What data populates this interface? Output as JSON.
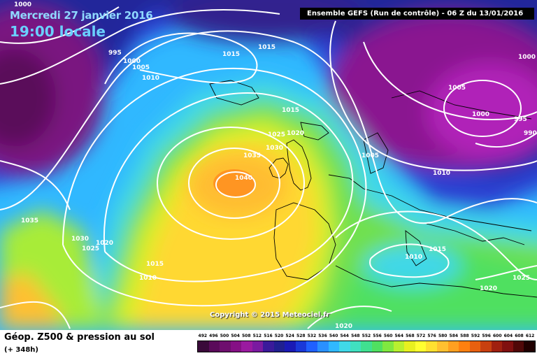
{
  "header": {
    "date": "Mercredi 27 janvier 2016",
    "time": "19:00 locale",
    "run": "Ensemble GEFS  (Run de contrôle)  -  06 Z du 13/01/2016"
  },
  "copyright": "Copyright © 2015 Meteociel.fr",
  "footer": {
    "title": "Géop. Z500 & pression au sol",
    "subtitle": "(+ 348h)"
  },
  "legend": {
    "values": [
      "492",
      "496",
      "500",
      "504",
      "508",
      "512",
      "516",
      "520",
      "524",
      "528",
      "532",
      "536",
      "540",
      "544",
      "548",
      "552",
      "556",
      "560",
      "564",
      "568",
      "572",
      "576",
      "580",
      "584",
      "588",
      "592",
      "596",
      "600",
      "604",
      "608",
      "612"
    ],
    "colors": [
      "#3a0a3a",
      "#5a0a5a",
      "#6e0f6e",
      "#851085",
      "#9a1aa0",
      "#7a1aa0",
      "#3a1a9a",
      "#202090",
      "#1a1ab5",
      "#1a38d8",
      "#2060ff",
      "#2a90ff",
      "#30b8ff",
      "#40d8e8",
      "#40e0c0",
      "#40e090",
      "#50e060",
      "#80e840",
      "#b8f030",
      "#e8f020",
      "#ffff30",
      "#ffe030",
      "#ffc030",
      "#ffa020",
      "#ff8010",
      "#e86010",
      "#c84010",
      "#a02010",
      "#801010",
      "#500808",
      "#200000"
    ]
  },
  "pressure_labels": [
    "995",
    "1000",
    "1005",
    "1010",
    "1015",
    "1015",
    "1015",
    "1025",
    "1020",
    "1030",
    "1035",
    "1040",
    "1005",
    "1010",
    "1005",
    "1000",
    "995",
    "990",
    "1000",
    "1035",
    "1030",
    "1025",
    "1020",
    "1015",
    "1010",
    "1015",
    "1010",
    "1020",
    "1025",
    "1020",
    "1000"
  ]
}
